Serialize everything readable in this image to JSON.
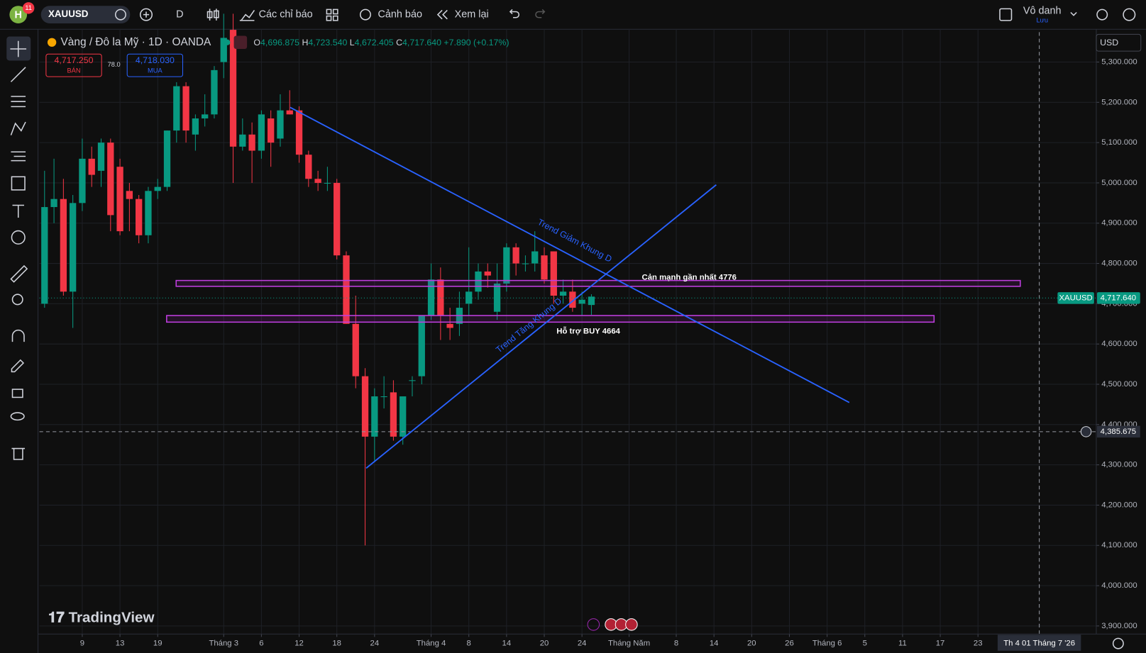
{
  "toolbar": {
    "avatar": "H",
    "badge": "11",
    "symbol": "XAUUSD",
    "interval": "D",
    "indicators": "Các chỉ báo",
    "alerts": "Cảnh báo",
    "replay": "Xem lại",
    "layout_name": "Vô danh",
    "save": "Lưu"
  },
  "legend": {
    "title": "Vàng / Đô la Mỹ · 1D · OANDA",
    "o_label": "O",
    "open": "4,696.875",
    "h_label": "H",
    "high": "4,723.540",
    "l_label": "L",
    "low": "4,672.405",
    "c_label": "C",
    "close": "4,717.640",
    "change": "+7.890 (+0.17%)",
    "sell_price": "4,717.250",
    "sell_label": "BÁN",
    "spread": "78.0",
    "buy_price": "4,718.030",
    "buy_label": "MUA"
  },
  "price_axis": {
    "currency": "USD",
    "symbol_label": "XAUUSD",
    "last_price": "4,717.640",
    "crosshair_price": "4,385.675",
    "crosshair_date": "Th 4 01 Tháng 7 '26"
  },
  "drawings": {
    "down_trend": "Trend Giảm Khung D",
    "up_trend": "Trend Tăng Khung D",
    "resistance": "Cản mạnh gần nhất 4776",
    "support": "Hỗ trợ BUY 4664"
  },
  "watermark": "TradingView",
  "chart_data": {
    "type": "candlestick",
    "up_color": "#089981",
    "down_color": "#f23645",
    "open": [
      4700,
      4940,
      4960,
      4730,
      4950,
      5060,
      5030,
      5100,
      5040,
      4980,
      4960,
      4870,
      4980,
      4990,
      5130,
      5240,
      5120,
      5160,
      5170,
      5300,
      5380,
      5090,
      5120,
      5080,
      5160,
      5110,
      5180,
      5180,
      5070,
      5010,
      5000,
      5000,
      4820,
      4650,
      4520,
      4370,
      4470,
      4480,
      4370,
      4510,
      4520,
      4670,
      4760,
      4650,
      4650,
      4700,
      4730,
      4780,
      4680,
      4750,
      4840,
      4800,
      4800,
      4820,
      4830,
      4720,
      4730,
      4700,
      4696.875
    ],
    "high": [
      5030,
      5060,
      5010,
      4970,
      5110,
      5090,
      5110,
      5110,
      5060,
      5000,
      4970,
      4990,
      5010,
      5130,
      5250,
      5250,
      5170,
      5220,
      5290,
      5420,
      5420,
      5160,
      5150,
      5180,
      5180,
      5220,
      5230,
      5190,
      5080,
      5030,
      5040,
      5010,
      4830,
      4720,
      4540,
      4490,
      4520,
      4510,
      4470,
      4520,
      4670,
      4800,
      4790,
      4690,
      4730,
      4840,
      4800,
      4800,
      4800,
      4850,
      4850,
      4820,
      4880,
      4840,
      4830,
      4760,
      4760,
      4730,
      4723.54
    ],
    "low": [
      4690,
      4900,
      4720,
      4640,
      4930,
      4990,
      4990,
      4880,
      4870,
      4880,
      4850,
      4850,
      4960,
      4980,
      5100,
      5100,
      5080,
      5140,
      5160,
      5260,
      5000,
      5080,
      5000,
      5060,
      5040,
      5090,
      5170,
      5050,
      4990,
      4980,
      4980,
      4810,
      4650,
      4490,
      4100,
      4310,
      4440,
      4360,
      4350,
      4470,
      4500,
      4660,
      4610,
      4610,
      4620,
      4670,
      4710,
      4740,
      4660,
      4730,
      4770,
      4780,
      4780,
      4750,
      4700,
      4700,
      4680,
      4670,
      4672.405
    ],
    "close": [
      4940,
      4960,
      4730,
      4950,
      5060,
      5020,
      5100,
      4920,
      4880,
      4960,
      4870,
      4980,
      4990,
      5130,
      5240,
      5130,
      5160,
      5170,
      5280,
      5360,
      5090,
      5120,
      5080,
      5170,
      5100,
      5180,
      5170,
      5070,
      5010,
      5000,
      5000,
      4820,
      4650,
      4520,
      4370,
      4470,
      4470,
      4370,
      4470,
      4510,
      4670,
      4760,
      4670,
      4640,
      4690,
      4730,
      4780,
      4770,
      4750,
      4840,
      4800,
      4800,
      4830,
      4760,
      4720,
      4730,
      4690,
      4710,
      4717.64
    ],
    "xlim": [
      -0.54,
      111.55
    ],
    "xticks": [
      {
        "value": 4,
        "label": "9"
      },
      {
        "value": 8,
        "label": "13"
      },
      {
        "value": 12,
        "label": "19"
      },
      {
        "value": 19,
        "label": "Tháng 3"
      },
      {
        "value": 23,
        "label": "6"
      },
      {
        "value": 27,
        "label": "12"
      },
      {
        "value": 31,
        "label": "18"
      },
      {
        "value": 35,
        "label": "24"
      },
      {
        "value": 41,
        "label": "Tháng 4"
      },
      {
        "value": 45,
        "label": "8"
      },
      {
        "value": 49,
        "label": "14"
      },
      {
        "value": 53,
        "label": "20"
      },
      {
        "value": 57,
        "label": "24"
      },
      {
        "value": 62,
        "label": "Tháng Năm"
      },
      {
        "value": 67,
        "label": "8"
      },
      {
        "value": 71,
        "label": "14"
      },
      {
        "value": 75,
        "label": "20"
      },
      {
        "value": 79,
        "label": "26"
      },
      {
        "value": 83,
        "label": "Tháng 6"
      },
      {
        "value": 87,
        "label": "5"
      },
      {
        "value": 91,
        "label": "11"
      },
      {
        "value": 95,
        "label": "17"
      },
      {
        "value": 99,
        "label": "23"
      }
    ],
    "ylim": [
      3880,
      5367
    ],
    "yticks": [
      {
        "value": 3900,
        "label": "3,900.000"
      },
      {
        "value": 4000,
        "label": "4,000.000"
      },
      {
        "value": 4100,
        "label": "4,100.000"
      },
      {
        "value": 4200,
        "label": "4,200.000"
      },
      {
        "value": 4300,
        "label": "4,300.000"
      },
      {
        "value": 4400,
        "label": "4,400.000"
      },
      {
        "value": 4500,
        "label": "4,500.000"
      },
      {
        "value": 4600,
        "label": "4,600.000"
      },
      {
        "value": 4700,
        "label": "4,700.000"
      },
      {
        "value": 4800,
        "label": "4,800.000"
      },
      {
        "value": 4900,
        "label": "4,900.000"
      },
      {
        "value": 5000,
        "label": "5,000.000"
      },
      {
        "value": 5100,
        "label": "5,100.000"
      },
      {
        "value": 5200,
        "label": "5,200.000"
      },
      {
        "value": 5300,
        "label": "5,300.000"
      }
    ]
  }
}
